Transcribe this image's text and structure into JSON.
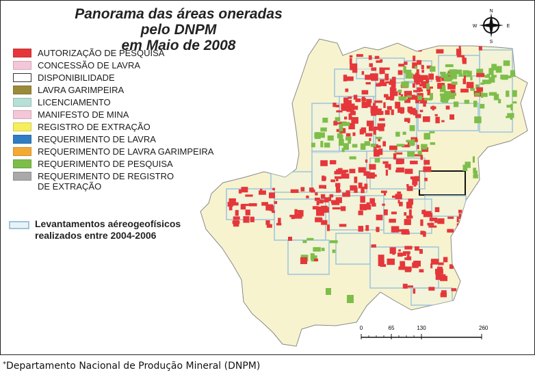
{
  "title": {
    "line1": "Panorama das áreas oneradas pelo DNPM",
    "line2": "em Maio de 2008"
  },
  "colors": {
    "state_fill": "#f7f3cf",
    "state_border": "#888888",
    "research_auth": "#e5373b",
    "research_req": "#7dbe4a",
    "survey_border": "#9dc4dc"
  },
  "legend": [
    {
      "label": "AUTORIZAÇÃO DE PESQUISA",
      "color": "#e5373b"
    },
    {
      "label": "CONCESSÃO DE LAVRA",
      "color": "#f3c6d8"
    },
    {
      "label": "DISPONIBILIDADE",
      "color": "#ffffff"
    },
    {
      "label": "LAVRA GARIMPEIRA",
      "color": "#9b8a3a"
    },
    {
      "label": "LICENCIAMENTO",
      "color": "#b6dfd6"
    },
    {
      "label": "MANIFESTO DE MINA",
      "color": "#f3c6d8"
    },
    {
      "label": "REGISTRO DE EXTRAÇÃO",
      "color": "#f6ee5b"
    },
    {
      "label": "REQUERIMENTO DE LAVRA",
      "color": "#2f7dc4"
    },
    {
      "label": "REQUERIMENTO DE LAVRA GARIMPEIRA",
      "color": "#f5a935"
    },
    {
      "label": "REQUERIMENTO DE PESQUISA",
      "color": "#7dbe4a"
    },
    {
      "label": "REQUERIMENTO DE REGISTRO\n DE EXTRAÇÃO",
      "color": "#a9a9a9"
    }
  ],
  "survey_legend": {
    "label": "Levantamentos aéreogeofísicos\nrealizados entre 2004-2006"
  },
  "compass": {
    "n": "N",
    "s": "S",
    "e": "E",
    "w": "W"
  },
  "scale": {
    "ticks": [
      "0",
      "65",
      "130",
      "260 km"
    ],
    "values_km": [
      0,
      65,
      130,
      260
    ]
  },
  "footnote": {
    "star": "*",
    "text": "Departamento Nacional de Produção Mineral (DNPM)"
  }
}
